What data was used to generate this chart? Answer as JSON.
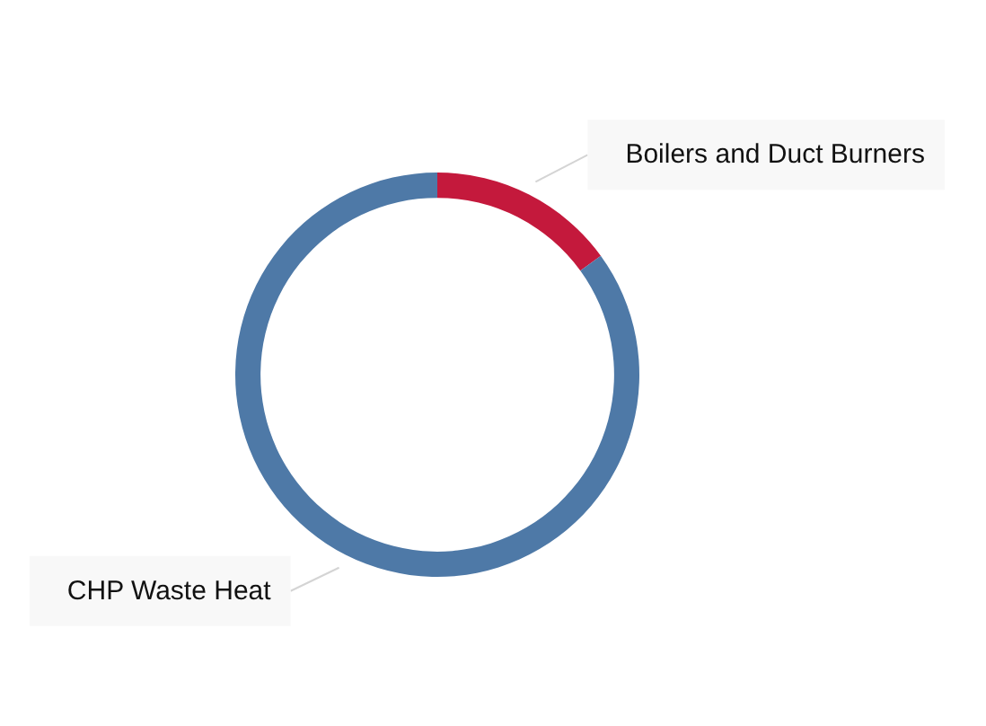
{
  "chart_data": {
    "type": "donut",
    "categories": [
      "Boilers and Duct Burners",
      "CHP Waste Heat"
    ],
    "values": [
      15,
      85
    ],
    "colors": [
      "#c4193c",
      "#4e79a7"
    ]
  }
}
